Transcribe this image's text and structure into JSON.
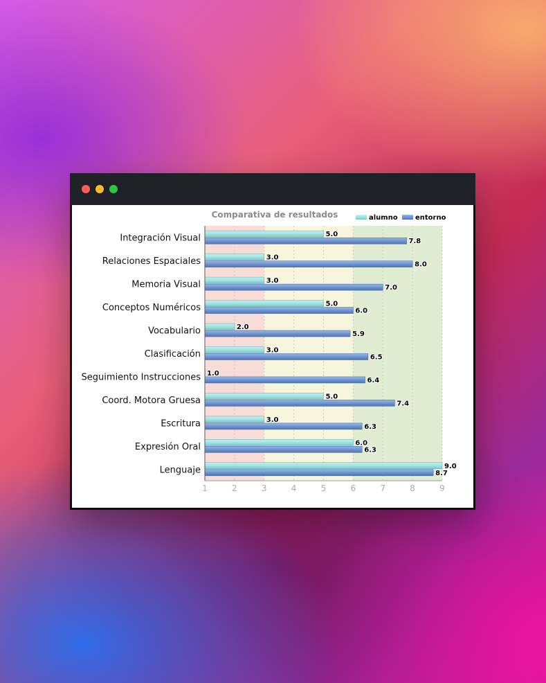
{
  "window": {
    "controls": [
      "close",
      "minimize",
      "zoom"
    ]
  },
  "chart_data": {
    "type": "bar",
    "orientation": "horizontal",
    "title": "Comparativa de resultados",
    "categories": [
      "Integración Visual",
      "Relaciones Espaciales",
      "Memoria Visual",
      "Conceptos Numéricos",
      "Vocabulario",
      "Clasificación",
      "Seguimiento Instrucciones",
      "Coord. Motora Gruesa",
      "Escritura",
      "Expresión Oral",
      "Lenguaje"
    ],
    "series": [
      {
        "name": "alumno",
        "color": "#9fe3e3",
        "values": [
          5.0,
          3.0,
          3.0,
          5.0,
          2.0,
          3.0,
          1.0,
          5.0,
          3.0,
          6.0,
          9.0
        ]
      },
      {
        "name": "entorno",
        "color": "#6f95d0",
        "values": [
          7.8,
          8.0,
          7.0,
          6.0,
          5.9,
          6.5,
          6.4,
          7.4,
          6.3,
          6.3,
          8.7
        ]
      }
    ],
    "value_labels": {
      "alumno": [
        "5.0",
        "3.0",
        "3.0",
        "5.0",
        "2.0",
        "3.0",
        "1.0",
        "5.0",
        "3.0",
        "6.0",
        "9.0"
      ],
      "entorno": [
        "7.8",
        "8.0",
        "7.0",
        "6.0",
        "5.9",
        "6.5",
        "6.4",
        "7.4",
        "6.3",
        "6.3",
        "8.7"
      ]
    },
    "xlim": [
      1,
      9
    ],
    "xticks": [
      "1",
      "2",
      "3",
      "4",
      "5",
      "6",
      "7",
      "8",
      "9"
    ],
    "grid": true,
    "legend": "top-right",
    "background_bands": [
      {
        "from": 1,
        "to": 3,
        "color": "#f7dcd7"
      },
      {
        "from": 3,
        "to": 6,
        "color": "#f7f5dc"
      },
      {
        "from": 6,
        "to": 9,
        "color": "#e1edd2"
      }
    ]
  }
}
